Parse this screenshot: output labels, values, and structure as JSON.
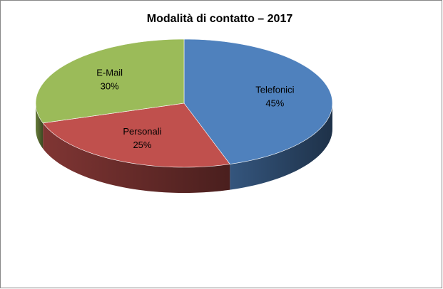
{
  "chart_data": {
    "type": "pie3d",
    "title": "Modalità di contatto – 2017",
    "categories": [
      "Telefonici",
      "Personali",
      "E-Mail"
    ],
    "values": [
      45,
      25,
      30
    ],
    "value_labels": [
      "45%",
      "25%",
      "30%"
    ],
    "colors": [
      "#4f81bd",
      "#c0504d",
      "#9bbb59"
    ]
  }
}
